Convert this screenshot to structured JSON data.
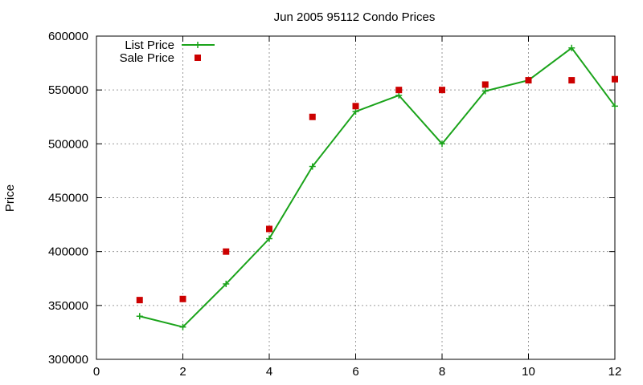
{
  "chart_data": {
    "type": "line",
    "title": "Jun 2005 95112 Condo Prices",
    "xlabel": "",
    "ylabel": "Price",
    "xlim": [
      0,
      12
    ],
    "ylim": [
      300000,
      600000
    ],
    "xticks": [
      0,
      2,
      4,
      6,
      8,
      10,
      12
    ],
    "yticks": [
      300000,
      350000,
      400000,
      450000,
      500000,
      550000,
      600000
    ],
    "grid": true,
    "legend_position": "top-left",
    "series": [
      {
        "name": "List Price",
        "style": "line-with-plus-markers",
        "color": "#1aa31a",
        "x": [
          1,
          2,
          3,
          4,
          5,
          6,
          7,
          8,
          9,
          10,
          11,
          12
        ],
        "y": [
          340000,
          330000,
          370000,
          412000,
          479000,
          530000,
          545000,
          500000,
          549000,
          559000,
          589000,
          535000
        ]
      },
      {
        "name": "Sale Price",
        "style": "square-markers",
        "color": "#cc0000",
        "x": [
          1,
          2,
          3,
          4,
          5,
          6,
          7,
          8,
          9,
          10,
          11,
          12
        ],
        "y": [
          355000,
          356000,
          400000,
          421000,
          525000,
          535000,
          550000,
          550000,
          555000,
          559000,
          559000,
          560000
        ]
      }
    ]
  }
}
